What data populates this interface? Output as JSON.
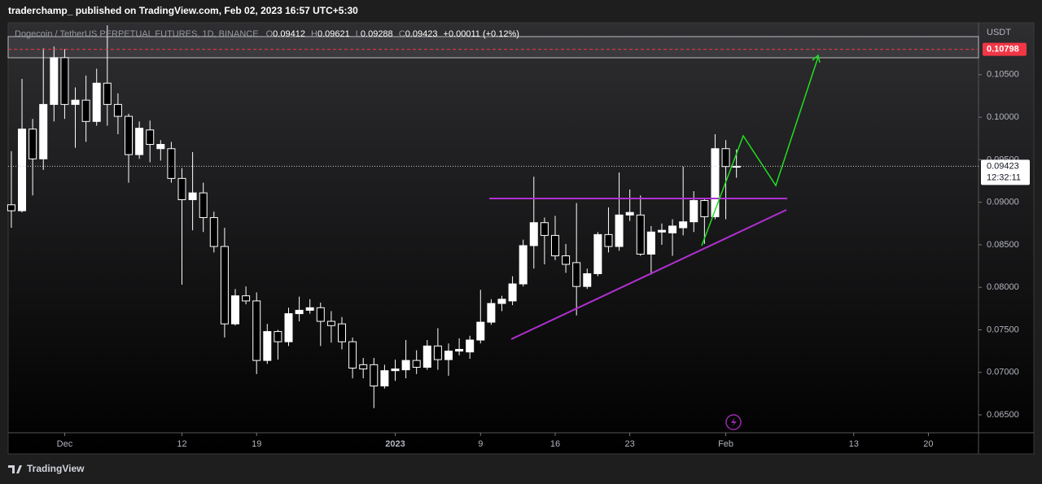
{
  "header": "traderchamp_ published on TradingView.com, Feb 02, 2023 16:57 UTC+5:30",
  "footer": "TradingView",
  "chart_data": {
    "type": "candlestick",
    "symbol": "Dogecoin / TetherUS PERPETUAL FUTURES, 1D, BINANCE",
    "ohlc_labels": [
      "O",
      "H",
      "L",
      "C"
    ],
    "change": "+0.00011 (+0.12%)",
    "currency": "USDT",
    "countdown": "12:32:11",
    "up_color": "#ffffff",
    "down_color": "#000000",
    "wick_color": "#ffffff",
    "x": [
      0,
      1,
      2,
      3,
      4,
      5,
      6,
      7,
      8,
      9,
      10,
      11,
      12,
      13,
      14,
      15,
      16,
      17,
      18,
      19,
      20,
      21,
      22,
      23,
      24,
      25,
      26,
      27,
      28,
      29,
      30,
      31,
      32,
      33,
      34,
      35,
      36,
      37,
      38,
      39,
      40,
      41,
      42,
      43,
      44,
      45,
      46,
      47,
      48,
      49,
      50,
      51,
      52,
      53,
      54,
      55,
      56,
      57,
      58,
      59,
      60,
      61,
      62,
      63,
      64,
      65,
      66,
      67,
      68
    ],
    "open": [
      0.0897,
      0.089,
      0.0986,
      0.0951,
      0.1015,
      0.107,
      0.1015,
      0.102,
      0.0995,
      0.104,
      0.1015,
      0.1001,
      0.0956,
      0.0985,
      0.0963,
      0.0963,
      0.0928,
      0.0903,
      0.0911,
      0.0882,
      0.0848,
      0.0757,
      0.079,
      0.0784,
      0.0714,
      0.0748,
      0.0736,
      0.0769,
      0.0773,
      0.0776,
      0.076,
      0.0757,
      0.0736,
      0.0709,
      0.0709,
      0.0684,
      0.0702,
      0.0703,
      0.0714,
      0.0706,
      0.0731,
      0.0715,
      0.0725,
      0.0724,
      0.0738,
      0.0759,
      0.0781,
      0.0784,
      0.0804,
      0.0849,
      0.0876,
      0.0861,
      0.0837,
      0.0829,
      0.0801,
      0.0816,
      0.0862,
      0.0848,
      0.0885,
      0.0885,
      0.0839,
      0.0865,
      0.0864,
      0.087,
      0.0877,
      0.0902,
      0.0883,
      0.0963,
      0.09412
    ],
    "high": [
      0.096,
      0.1045,
      0.0998,
      0.1081,
      0.1083,
      0.108,
      0.1035,
      0.1049,
      0.1057,
      0.1108,
      0.1028,
      0.1004,
      0.0995,
      0.0996,
      0.0973,
      0.0971,
      0.094,
      0.0959,
      0.0923,
      0.0889,
      0.087,
      0.0798,
      0.0801,
      0.0794,
      0.0757,
      0.075,
      0.0776,
      0.0789,
      0.0786,
      0.0782,
      0.0772,
      0.0765,
      0.0741,
      0.0717,
      0.0717,
      0.0709,
      0.0715,
      0.0738,
      0.0726,
      0.0738,
      0.0752,
      0.0734,
      0.074,
      0.0743,
      0.0797,
      0.0786,
      0.079,
      0.0813,
      0.0856,
      0.093,
      0.0882,
      0.0884,
      0.0851,
      0.0899,
      0.0822,
      0.0865,
      0.0894,
      0.0935,
      0.0915,
      0.0908,
      0.0872,
      0.0875,
      0.088,
      0.0942,
      0.0913,
      0.0904,
      0.098,
      0.0973,
      0.09621
    ],
    "low": [
      0.087,
      0.0888,
      0.0908,
      0.0938,
      0.0995,
      0.0998,
      0.0964,
      0.0971,
      0.099,
      0.099,
      0.098,
      0.0923,
      0.0951,
      0.0947,
      0.0949,
      0.0923,
      0.0803,
      0.0867,
      0.0865,
      0.0841,
      0.0741,
      0.0755,
      0.078,
      0.0698,
      0.071,
      0.0715,
      0.0731,
      0.076,
      0.0769,
      0.0731,
      0.0735,
      0.0727,
      0.0693,
      0.0693,
      0.0658,
      0.0681,
      0.069,
      0.0693,
      0.0698,
      0.0703,
      0.0703,
      0.0696,
      0.072,
      0.0716,
      0.0734,
      0.0756,
      0.0772,
      0.0779,
      0.0801,
      0.0822,
      0.0827,
      0.0832,
      0.0817,
      0.0767,
      0.0798,
      0.0813,
      0.0841,
      0.0843,
      0.0878,
      0.0837,
      0.0815,
      0.085,
      0.0837,
      0.0861,
      0.0865,
      0.0851,
      0.088,
      0.088,
      0.09288
    ],
    "close": [
      0.089,
      0.0986,
      0.0951,
      0.1015,
      0.107,
      0.1015,
      0.102,
      0.0995,
      0.104,
      0.1015,
      0.1001,
      0.0956,
      0.0987,
      0.0968,
      0.0968,
      0.0928,
      0.0903,
      0.0911,
      0.0882,
      0.0848,
      0.0757,
      0.079,
      0.0784,
      0.0714,
      0.0748,
      0.0736,
      0.0769,
      0.0773,
      0.0776,
      0.076,
      0.0755,
      0.0736,
      0.0705,
      0.0704,
      0.0684,
      0.0702,
      0.0704,
      0.0714,
      0.0706,
      0.0731,
      0.0715,
      0.0725,
      0.0727,
      0.0738,
      0.0759,
      0.0781,
      0.0786,
      0.0804,
      0.0849,
      0.0876,
      0.0861,
      0.0837,
      0.0827,
      0.0801,
      0.0816,
      0.0862,
      0.0848,
      0.0885,
      0.0888,
      0.0839,
      0.0865,
      0.0867,
      0.0872,
      0.0877,
      0.0902,
      0.0883,
      0.0963,
      0.0942,
      0.09423
    ],
    "price_line": {
      "value": 0.10798,
      "label": "0.10798",
      "color": "#f23645"
    },
    "xlim": [
      -0.3,
      90.7
    ],
    "xticks": [
      {
        "value": 5,
        "label": "Dec"
      },
      {
        "value": 16,
        "label": "12"
      },
      {
        "value": 23,
        "label": "19"
      },
      {
        "value": 36,
        "label": "2023"
      },
      {
        "value": 44,
        "label": "9"
      },
      {
        "value": 51,
        "label": "16"
      },
      {
        "value": 58,
        "label": "23"
      },
      {
        "value": 67,
        "label": "Feb"
      },
      {
        "value": 79,
        "label": "13"
      },
      {
        "value": 86,
        "label": "20"
      }
    ],
    "ylim": [
      0.0629,
      0.1111
    ],
    "yticks": [
      {
        "value": 0.065,
        "label": "0.06500"
      },
      {
        "value": 0.07,
        "label": "0.07000"
      },
      {
        "value": 0.075,
        "label": "0.07500"
      },
      {
        "value": 0.08,
        "label": "0.08000"
      },
      {
        "value": 0.085,
        "label": "0.08500"
      },
      {
        "value": 0.09,
        "label": "0.09000"
      },
      {
        "value": 0.095,
        "label": "0.09500"
      },
      {
        "value": 0.1,
        "label": "0.10000"
      },
      {
        "value": 0.105,
        "label": "0.10500"
      }
    ]
  }
}
